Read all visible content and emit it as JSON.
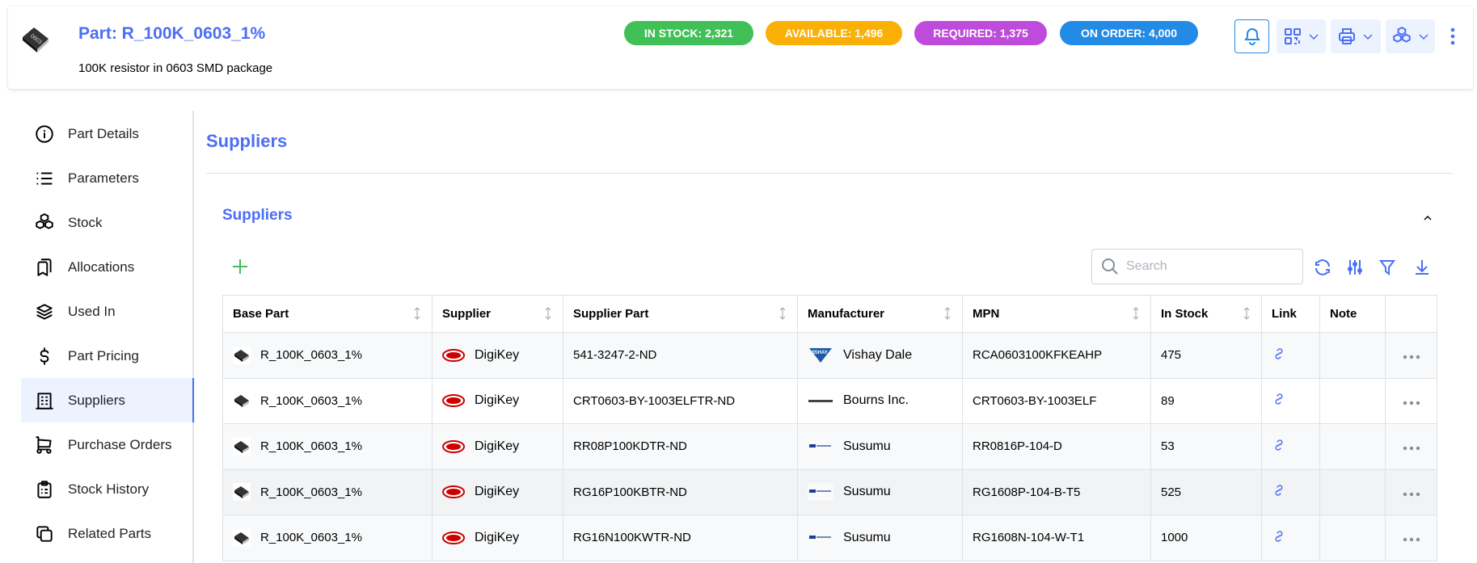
{
  "header": {
    "title": "Part: R_100K_0603_1%",
    "subtitle": "100K resistor in 0603 SMD package",
    "badges": [
      {
        "label": "IN STOCK: 2,321",
        "color": "#40c057"
      },
      {
        "label": "AVAILABLE: 1,496",
        "color": "#fab005"
      },
      {
        "label": "REQUIRED: 1,375",
        "color": "#be4bdb"
      },
      {
        "label": "ON ORDER: 4,000",
        "color": "#228be6"
      }
    ],
    "actions": [
      "bell-icon",
      "qr-code-icon",
      "printer-icon",
      "boxes-icon",
      "dots-vertical-icon"
    ]
  },
  "sidebar": {
    "items": [
      {
        "label": "Part Details",
        "icon": "info-circle-icon"
      },
      {
        "label": "Parameters",
        "icon": "list-icon"
      },
      {
        "label": "Stock",
        "icon": "boxes-icon"
      },
      {
        "label": "Allocations",
        "icon": "bookmarks-icon"
      },
      {
        "label": "Used In",
        "icon": "stack-icon"
      },
      {
        "label": "Part Pricing",
        "icon": "currency-dollar-icon"
      },
      {
        "label": "Suppliers",
        "icon": "building-icon",
        "active": true
      },
      {
        "label": "Purchase Orders",
        "icon": "shopping-cart-icon"
      },
      {
        "label": "Stock History",
        "icon": "clipboard-list-icon"
      },
      {
        "label": "Related Parts",
        "icon": "copy-icon"
      }
    ]
  },
  "main": {
    "title": "Suppliers",
    "panel_title": "Suppliers",
    "search_placeholder": "Search",
    "accent": "#4c6ef5",
    "add_color": "#40c057"
  },
  "table": {
    "columns": [
      "Base Part",
      "Supplier",
      "Supplier Part",
      "Manufacturer",
      "MPN",
      "In Stock",
      "Link",
      "Note",
      ""
    ],
    "rows": [
      {
        "base_part": "R_100K_0603_1%",
        "supplier": "DigiKey",
        "supplier_part": "541-3247-2-ND",
        "manufacturer": "Vishay Dale",
        "mpn": "RCA0603100KFKEAHP",
        "in_stock": "475"
      },
      {
        "base_part": "R_100K_0603_1%",
        "supplier": "DigiKey",
        "supplier_part": "CRT0603-BY-1003ELFTR-ND",
        "manufacturer": "Bourns Inc.",
        "mpn": "CRT0603-BY-1003ELF",
        "in_stock": "89"
      },
      {
        "base_part": "R_100K_0603_1%",
        "supplier": "DigiKey",
        "supplier_part": "RR08P100KDTR-ND",
        "manufacturer": "Susumu",
        "mpn": "RR0816P-104-D",
        "in_stock": "53"
      },
      {
        "base_part": "R_100K_0603_1%",
        "supplier": "DigiKey",
        "supplier_part": "RG16P100KBTR-ND",
        "manufacturer": "Susumu",
        "mpn": "RG1608P-104-B-T5",
        "in_stock": "525"
      },
      {
        "base_part": "R_100K_0603_1%",
        "supplier": "DigiKey",
        "supplier_part": "RG16N100KWTR-ND",
        "manufacturer": "Susumu",
        "mpn": "RG1608N-104-W-T1",
        "in_stock": "1000"
      }
    ]
  }
}
